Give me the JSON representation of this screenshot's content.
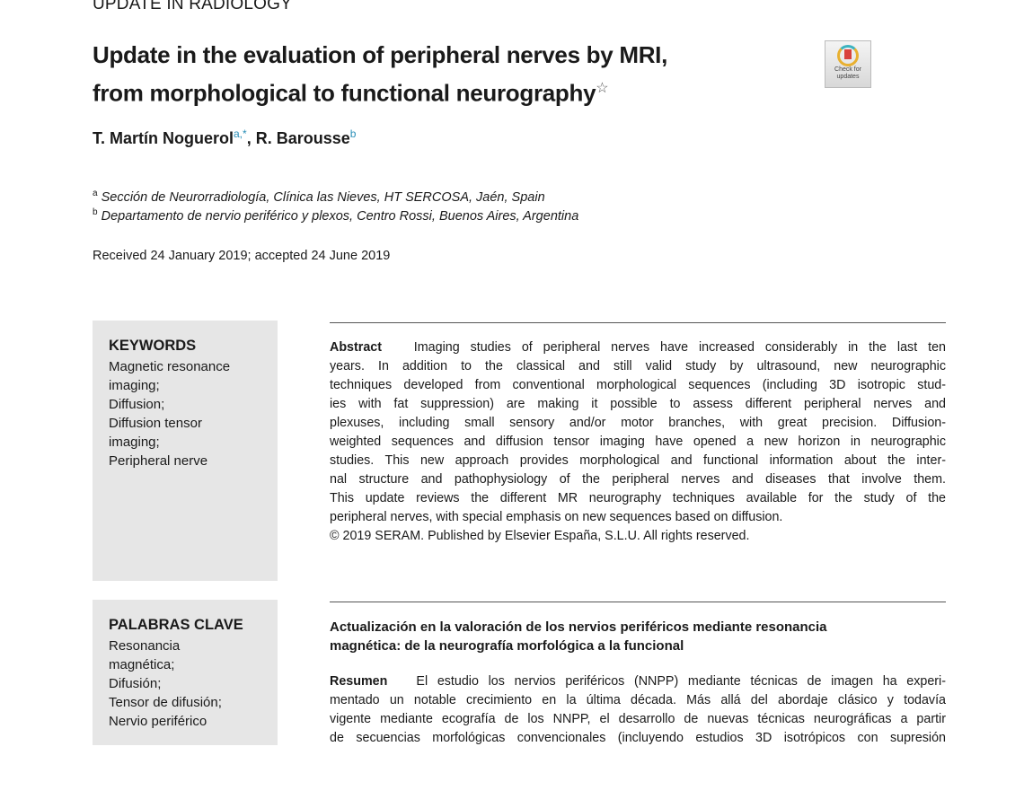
{
  "section": "UPDATE IN RADIOLOGY",
  "title": {
    "line1": "Update in the evaluation of peripheral nerves by MRI,",
    "line2": "from morphological to functional neurography",
    "star": "☆"
  },
  "badge": {
    "line1": "Check for",
    "line2": "updates"
  },
  "authors": {
    "a1": "T. Martín Noguerol",
    "a1_sup": "a,*",
    "sep": ", ",
    "a2": "R. Barousse",
    "a2_sup": "b"
  },
  "affiliations": [
    {
      "sup": "a",
      "text": "Sección de Neurorradiología, Clínica las Nieves, HT SERCOSA, Jaén, Spain"
    },
    {
      "sup": "b",
      "text": "Departamento de nervio periférico y plexos, Centro Rossi, Buenos Aires, Argentina"
    }
  ],
  "received": "Received 24 January 2019; accepted 24 June 2019",
  "keywords": {
    "heading": "KEYWORDS",
    "items": [
      "Magnetic resonance",
      "imaging;",
      "Diffusion;",
      "Diffusion tensor",
      "imaging;",
      "Peripheral nerve"
    ]
  },
  "abstract": {
    "label": "Abstract",
    "lines": [
      "Imaging studies of peripheral nerves have increased considerably in the last ten",
      "years. In addition to the classical and still valid study by ultrasound, new neurographic",
      "techniques developed from conventional morphological sequences (including 3D isotropic stud-",
      "ies with fat suppression) are making it possible to assess different peripheral nerves and",
      "plexuses, including small sensory and/or motor branches, with great precision. Diffusion-",
      "weighted sequences and diffusion tensor imaging have opened a new horizon in neurographic",
      "studies. This new approach provides morphological and functional information about the inter-",
      "nal structure and pathophysiology of the peripheral nerves and diseases that involve them.",
      "This update reviews the different MR neurography techniques available for the study of the",
      "peripheral nerves, with special emphasis on new sequences based on diffusion.",
      "© 2019 SERAM. Published by Elsevier España, S.L.U. All rights reserved."
    ]
  },
  "palabras": {
    "heading": "PALABRAS CLAVE",
    "items": [
      "Resonancia",
      "magnética;",
      "Difusión;",
      "Tensor de difusión;",
      "Nervio periférico"
    ]
  },
  "spanish_title": {
    "line1": "Actualización en la valoración de los nervios periféricos mediante resonancia",
    "line2": "magnética: de la neurografía morfológica a la funcional"
  },
  "resumen": {
    "label": "Resumen",
    "lines": [
      "El estudio los nervios periféricos (NNPP) mediante técnicas de imagen ha experi-",
      "mentado un notable crecimiento en la última década. Más allá del abordaje clásico y todavía",
      "vigente mediante ecografía de los NNPP, el desarrollo de nuevas técnicas neurográficas a partir",
      "de secuencias morfológicas convencionales (incluyendo estudios 3D isotrópicos con supresión"
    ]
  }
}
